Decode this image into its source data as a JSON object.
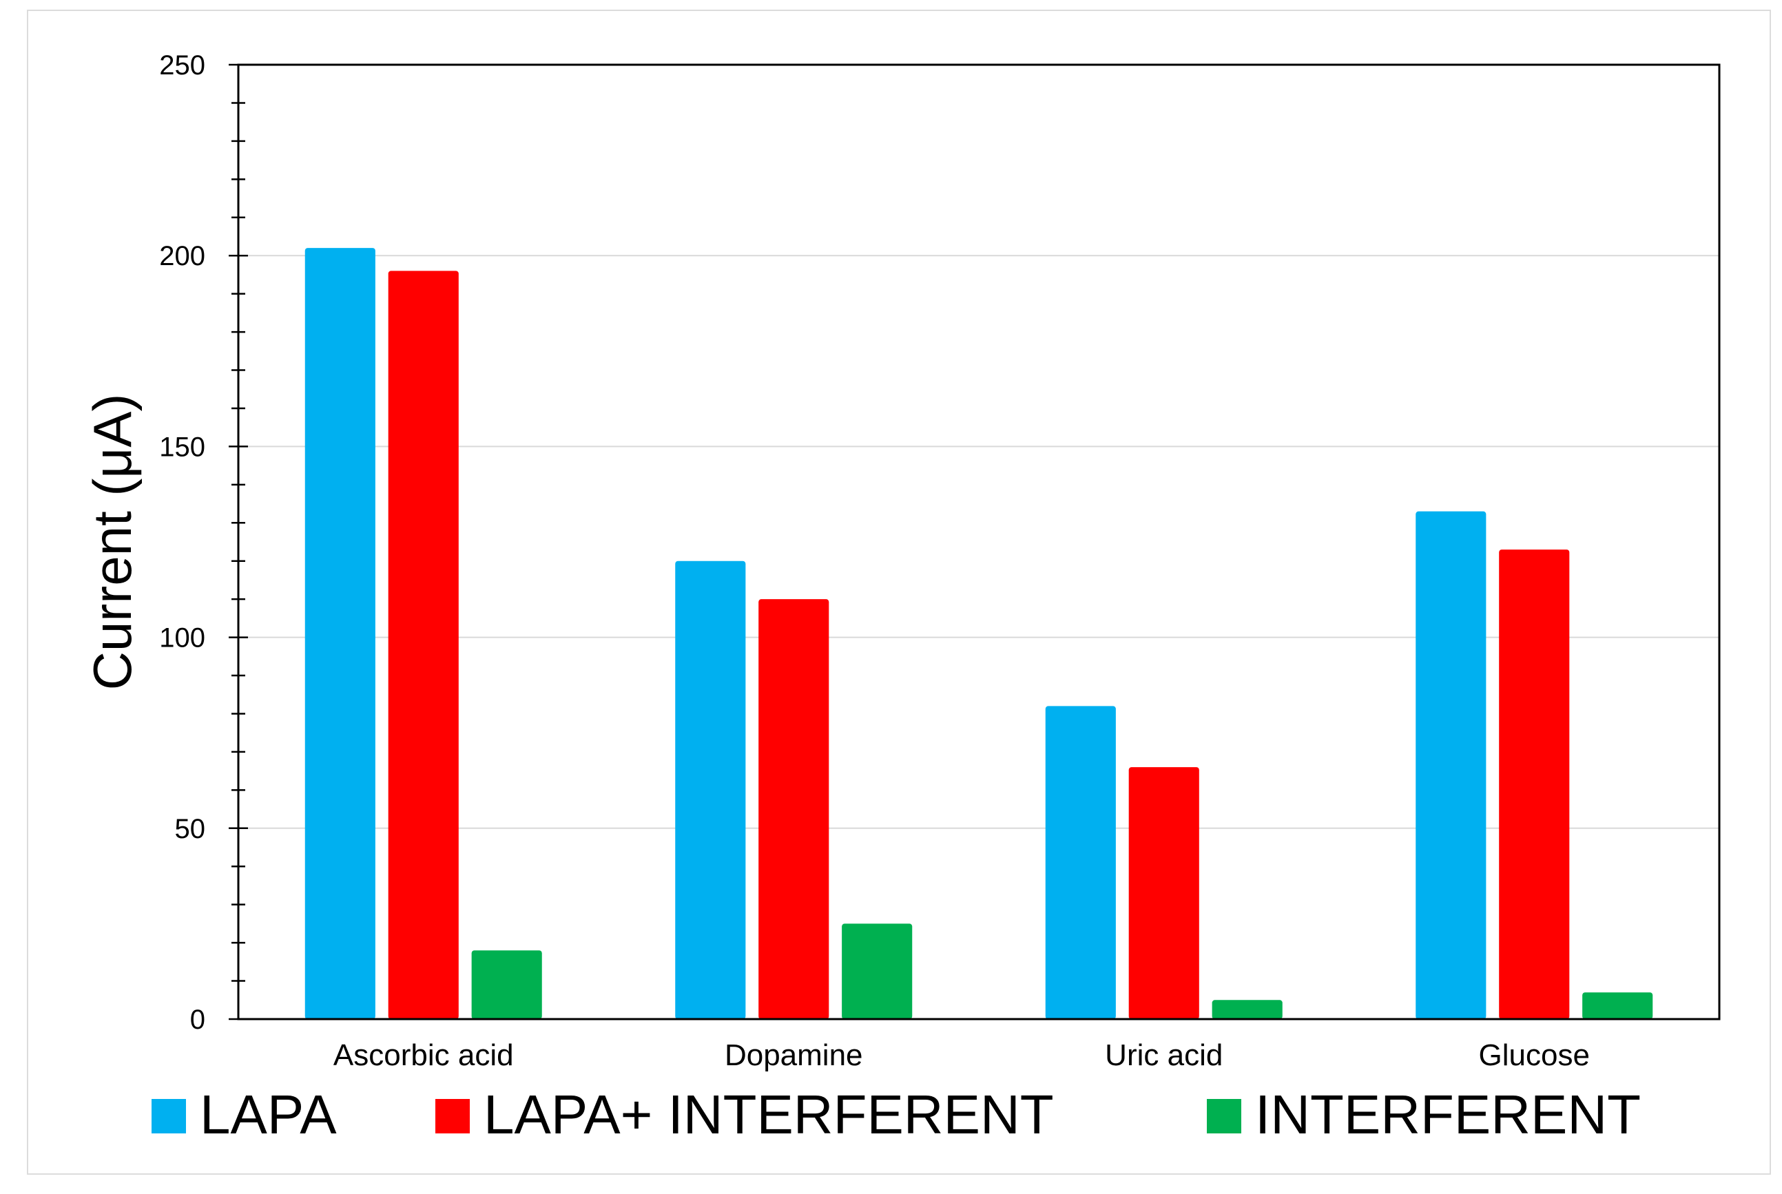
{
  "chart_data": {
    "type": "bar",
    "title": "",
    "xlabel": "",
    "ylabel": "Current  (μA)",
    "categories": [
      "Ascorbic acid",
      "Dopamine",
      "Uric acid",
      "Glucose"
    ],
    "series": [
      {
        "name": "LAPA",
        "color": "#00B0F0",
        "values": [
          202,
          120,
          82,
          133
        ]
      },
      {
        "name": "LAPA+ INTERFERENT",
        "color": "#FF0000",
        "values": [
          196,
          110,
          66,
          123
        ]
      },
      {
        "name": "INTERFERENT",
        "color": "#00B050",
        "values": [
          18,
          25,
          5,
          7
        ]
      }
    ],
    "ylim": [
      0,
      250
    ],
    "yticks": [
      0,
      50,
      100,
      150,
      200,
      250
    ],
    "grid": true,
    "legend_position": "bottom"
  }
}
